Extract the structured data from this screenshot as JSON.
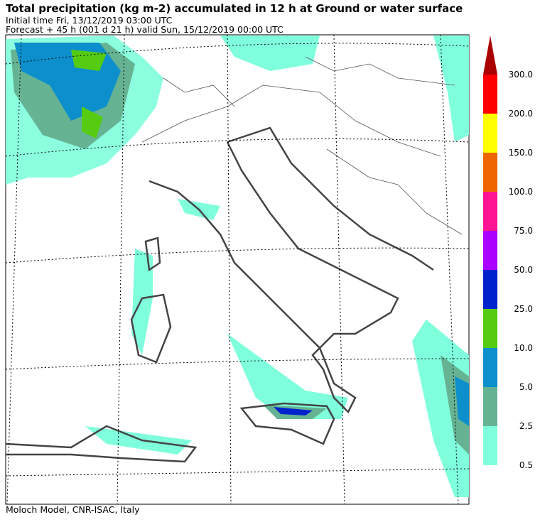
{
  "header": {
    "title": "Total precipitation (kg m-2) accumulated in  12 h at Ground or water surface",
    "initial_time": "Initial time  Fri, 13/12/2019  03:00 UTC",
    "forecast": "Forecast  +  45 h  (001 d 21 h)  valid Sun, 15/12/2019 00:00 UTC"
  },
  "colorbar": {
    "levels": [
      {
        "value": 0.5,
        "label": "0.5",
        "color": "#80ffdc"
      },
      {
        "value": 2.5,
        "label": "2.5",
        "color": "#66b393"
      },
      {
        "value": 5,
        "label": "5.0",
        "color": "#0d8fcc"
      },
      {
        "value": 10,
        "label": "10.0",
        "color": "#55cc11"
      },
      {
        "value": 25,
        "label": "25.0",
        "color": "#0022cc"
      },
      {
        "value": 50,
        "label": "50.0",
        "color": "#aa00ff"
      },
      {
        "value": 75,
        "label": "75.0",
        "color": "#ff1493"
      },
      {
        "value": 100,
        "label": "100.0",
        "color": "#ee6600"
      },
      {
        "value": 150,
        "label": "150.0",
        "color": "#ffff00"
      },
      {
        "value": 200,
        "label": "200.0",
        "color": "#ff0000"
      },
      {
        "value": 300,
        "label": "300.0",
        "color": "#aa0000"
      }
    ]
  },
  "footer": "Moloch Model, CNR-ISAC, Italy"
}
